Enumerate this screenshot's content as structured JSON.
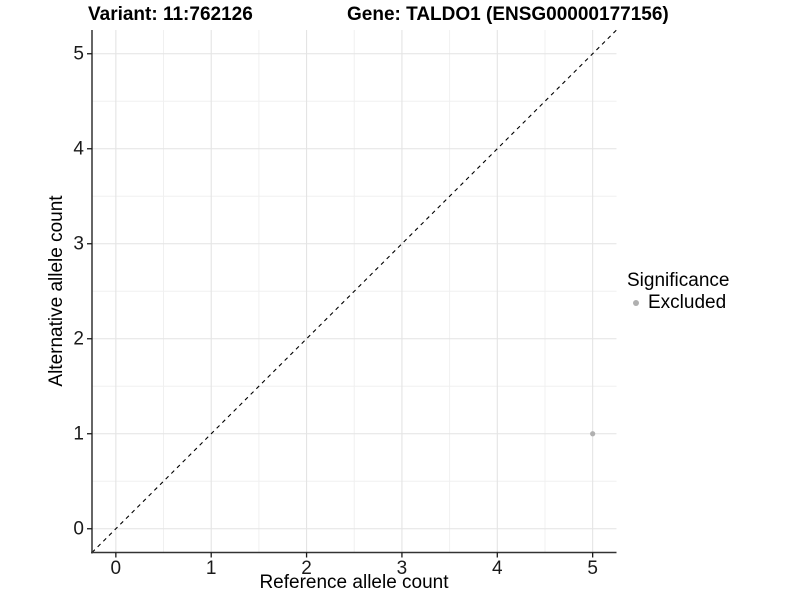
{
  "title": {
    "variant": "Variant: 11:762126",
    "gene": "Gene: TALDO1 (ENSG00000177156)"
  },
  "chart_data": {
    "type": "scatter",
    "xlabel": "Reference allele count",
    "ylabel": "Alternative allele count",
    "xlim": [
      -0.25,
      5.25
    ],
    "ylim": [
      -0.25,
      5.25
    ],
    "x_ticks": [
      0,
      1,
      2,
      3,
      4,
      5
    ],
    "y_ticks": [
      0,
      1,
      2,
      3,
      4,
      5
    ],
    "minor_grid_step": 0.5,
    "grid": true,
    "reference_line": {
      "kind": "identity",
      "style": "dashed",
      "color": "#000000"
    },
    "points": [
      {
        "x": 5,
        "y": 1,
        "series": "Excluded"
      }
    ],
    "legend": {
      "title": "Significance",
      "position": "right",
      "items": [
        {
          "label": "Excluded",
          "color": "#b0b0b0"
        }
      ]
    }
  },
  "colors": {
    "background": "#ffffff",
    "major_grid": "#e4e4e4",
    "minor_grid": "#f0f0f0",
    "axis_line": "#333333",
    "tick_mark": "#1a1a1a",
    "point": "#b0b0b0",
    "text": "#000000"
  }
}
